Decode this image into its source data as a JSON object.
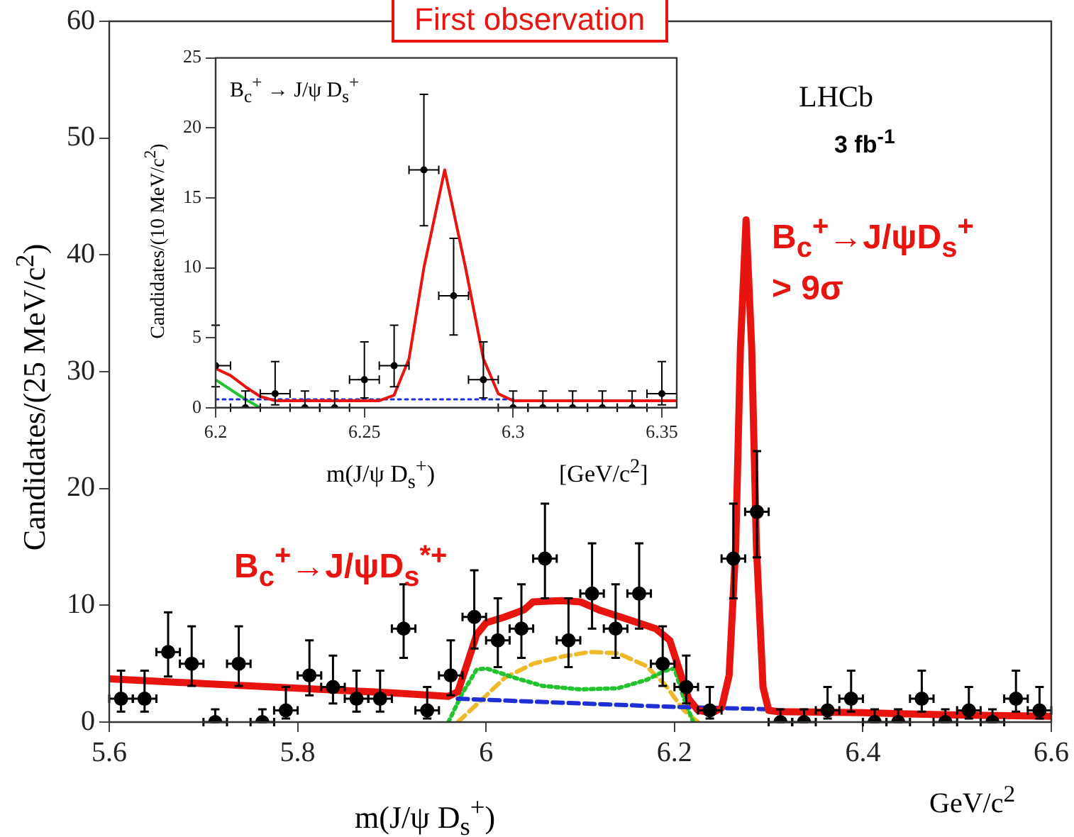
{
  "chart_data": [
    {
      "type": "scatter",
      "xlabel": "m(J/ψ D$_{s}$$^{+}$)",
      "ylabel": "Candidates/(25 MeV/c$^{2}$)",
      "annotations": [
        "First observation",
        "LHCb",
        "3 fb$^{-1}$",
        "B$_{c}$$^{+}$→J/ψD$_{s}$$^{*+}$",
        "B$_{c}$$^{+}$→J/ψD$_{s}$$^{+}$",
        "> 9σ",
        "GeV/c$^{2}$"
      ],
      "xlim": [
        5.6,
        6.6
      ],
      "xticks": [
        5.6,
        5.8,
        6,
        6.2,
        6.4,
        6.6
      ],
      "ylim": [
        0,
        60
      ],
      "yticks": [
        0,
        10,
        20,
        30,
        40,
        50,
        60
      ],
      "grid": false,
      "legend": false,
      "series": [
        {
          "color": "#000000",
          "marker": "circle",
          "x": [
            5.6125,
            5.6375,
            5.6625,
            5.6875,
            5.7125,
            5.7375,
            5.7625,
            5.7875,
            5.8125,
            5.8375,
            5.8625,
            5.8875,
            5.9125,
            5.9375,
            5.9625,
            5.9875,
            6.0125,
            6.0375,
            6.0625,
            6.0875,
            6.1125,
            6.1375,
            6.1625,
            6.1875,
            6.2125,
            6.2375,
            6.2625,
            6.2875,
            6.3125,
            6.3375,
            6.3625,
            6.3875,
            6.4125,
            6.4375,
            6.4625,
            6.4875,
            6.5125,
            6.5375,
            6.5625,
            6.5875
          ],
          "values": [
            2,
            2,
            6,
            5,
            0,
            5,
            0,
            1,
            4,
            3,
            2,
            2,
            8,
            1,
            4,
            9,
            7,
            8,
            14,
            7,
            11,
            8,
            11,
            5,
            3,
            1,
            14,
            18,
            0,
            0,
            1,
            2,
            0,
            0,
            2,
            0,
            1,
            0,
            2,
            1
          ],
          "errors": [
            [
              0.9,
              4.4
            ],
            [
              0.9,
              4.4
            ],
            [
              3.9,
              9.4
            ],
            [
              3.1,
              8.2
            ],
            [
              0,
              1.1
            ],
            [
              3.1,
              8.2
            ],
            [
              0,
              1.1
            ],
            [
              0.3,
              3.0
            ],
            [
              2.3,
              7.0
            ],
            [
              1.6,
              5.7
            ],
            [
              0.9,
              4.4
            ],
            [
              0.9,
              4.4
            ],
            [
              5.5,
              11.8
            ],
            [
              0.3,
              3.0
            ],
            [
              2.3,
              7.0
            ],
            [
              6.3,
              13.0
            ],
            [
              4.7,
              10.6
            ],
            [
              5.5,
              11.8
            ],
            [
              10.6,
              18.7
            ],
            [
              4.7,
              10.6
            ],
            [
              8.0,
              15.3
            ],
            [
              5.5,
              11.8
            ],
            [
              8.0,
              15.3
            ],
            [
              3.1,
              8.2
            ],
            [
              1.6,
              5.7
            ],
            [
              0.3,
              3.0
            ],
            [
              10.6,
              18.7
            ],
            [
              14.1,
              23.2
            ],
            [
              0,
              1.1
            ],
            [
              0,
              1.1
            ],
            [
              0.3,
              3.0
            ],
            [
              0.9,
              4.4
            ],
            [
              0,
              1.1
            ],
            [
              0,
              1.1
            ],
            [
              0.9,
              4.4
            ],
            [
              0,
              1.1
            ],
            [
              0.3,
              3.0
            ],
            [
              0,
              1.1
            ],
            [
              0.9,
              4.4
            ],
            [
              0.3,
              3.0
            ]
          ],
          "xerrors": [
            0.0125,
            0.0125,
            0.0125,
            0.0125,
            0.0125,
            0.0125,
            0.0125,
            0.0125,
            0.0125,
            0.0125,
            0.0125,
            0.0125,
            0.0125,
            0.0125,
            0.0125,
            0.0125,
            0.0125,
            0.0125,
            0.0125,
            0.0125,
            0.0125,
            0.0125,
            0.0125,
            0.0125,
            0.0125,
            0.0125,
            0.0125,
            0.0125,
            0.0125,
            0.0125,
            0.0125,
            0.0125,
            0.0125,
            0.0125,
            0.0125,
            0.0125,
            0.0125,
            0.0125,
            0.0125,
            0.0125
          ]
        },
        {
          "type": "line",
          "color": "#e8140f",
          "marker": "none",
          "line_style": "solid",
          "x": [
            5.6,
            5.7,
            5.8,
            5.9,
            5.96,
            5.97,
            5.98,
            5.99,
            6.0,
            6.02,
            6.04,
            6.05,
            6.08,
            6.1,
            6.12,
            6.15,
            6.18,
            6.195,
            6.205,
            6.215,
            6.225,
            6.24,
            6.25,
            6.258,
            6.265,
            6.27,
            6.276,
            6.282,
            6.287,
            6.294,
            6.3,
            6.31,
            6.4,
            6.5,
            6.6
          ],
          "values": [
            3.7,
            3.3,
            2.9,
            2.5,
            2.2,
            2.6,
            5.0,
            7.5,
            8.5,
            9.0,
            9.6,
            10.3,
            10.4,
            10.3,
            9.6,
            8.8,
            8.0,
            7.0,
            4.5,
            2.0,
            1.0,
            0.8,
            1.2,
            4,
            15,
            32,
            43,
            32,
            15,
            3,
            1.0,
            0.9,
            0.8,
            0.6,
            0.5
          ]
        },
        {
          "type": "line",
          "color": "#1f2fd6",
          "marker": "none",
          "line_style": "dashed",
          "x": [
            5.97,
            6.1,
            6.2,
            6.3
          ],
          "values": [
            2.0,
            1.6,
            1.3,
            1.1
          ]
        },
        {
          "type": "line",
          "color": "#22c32e",
          "marker": "none",
          "line_style": "dotted",
          "x": [
            5.96,
            5.975,
            5.99,
            6.0,
            6.03,
            6.06,
            6.1,
            6.14,
            6.17,
            6.19,
            6.2,
            6.21,
            6.22
          ],
          "values": [
            0,
            2.5,
            4.5,
            4.6,
            3.8,
            3.1,
            2.8,
            2.9,
            3.6,
            4.4,
            4.6,
            2.0,
            0
          ]
        },
        {
          "type": "line",
          "color": "#f0b92a",
          "marker": "none",
          "line_style": "dashed",
          "x": [
            5.97,
            5.99,
            6.02,
            6.05,
            6.08,
            6.11,
            6.14,
            6.17,
            6.19,
            6.21,
            6.225
          ],
          "values": [
            0,
            1.5,
            3.8,
            5.0,
            5.6,
            6.0,
            5.9,
            4.8,
            3.2,
            1.0,
            0
          ]
        }
      ]
    },
    {
      "type": "scatter",
      "xlabel": "m(J/ψ D$_{s}$$^{+}$)",
      "ylabel": "Candidates/(10 MeV/c$^{2}$)",
      "annotations": [
        "B$_{c}$$^{+}$ → J/ψ D$_{s}$$^{+}$",
        "[GeV/c$^{2}$]"
      ],
      "xlim": [
        6.2,
        6.355
      ],
      "xticks": [
        6.2,
        6.25,
        6.3,
        6.35
      ],
      "ylim": [
        0,
        25
      ],
      "yticks": [
        0,
        5,
        10,
        15,
        20,
        25
      ],
      "grid": false,
      "legend": false,
      "series": [
        {
          "color": "#000000",
          "marker": "circle",
          "x": [
            6.2,
            6.21,
            6.22,
            6.23,
            6.24,
            6.25,
            6.26,
            6.27,
            6.28,
            6.29,
            6.3,
            6.31,
            6.32,
            6.33,
            6.34,
            6.35
          ],
          "values": [
            3,
            0,
            1,
            0,
            0,
            2,
            3,
            17,
            8,
            2,
            0,
            0,
            0,
            0,
            0,
            1
          ],
          "errors": [
            [
              1.5,
              5.9
            ],
            [
              0,
              1.2
            ],
            [
              0.2,
              3.3
            ],
            [
              0,
              1.2
            ],
            [
              0,
              1.2
            ],
            [
              0.7,
              4.7
            ],
            [
              1.5,
              5.9
            ],
            [
              13.0,
              22.4
            ],
            [
              5.2,
              12.1
            ],
            [
              0.7,
              4.7
            ],
            [
              0,
              1.2
            ],
            [
              0,
              1.2
            ],
            [
              0,
              1.2
            ],
            [
              0,
              1.2
            ],
            [
              0,
              1.2
            ],
            [
              0.2,
              3.3
            ]
          ],
          "xerrors": [
            [
              6.2,
              6.205
            ],
            0.005,
            0.005,
            0.005,
            0.005,
            0.005,
            0.005,
            0.005,
            0.005,
            0.005,
            0.005,
            0.005,
            0.005,
            0.005,
            0.005,
            0.005
          ]
        },
        {
          "type": "line",
          "color": "#e8140f",
          "marker": "none",
          "line_style": "solid",
          "x": [
            6.2,
            6.205,
            6.21,
            6.215,
            6.22,
            6.255,
            6.26,
            6.265,
            6.27,
            6.277,
            6.284,
            6.29,
            6.295,
            6.3,
            6.355
          ],
          "values": [
            2.8,
            2.3,
            1.5,
            0.8,
            0.5,
            0.5,
            0.9,
            3.5,
            10,
            17,
            10,
            3.5,
            1.0,
            0.5,
            0.5
          ]
        },
        {
          "type": "line",
          "color": "#1f2fd6",
          "marker": "none",
          "line_style": "dotted",
          "x": [
            6.2,
            6.3
          ],
          "values": [
            0.6,
            0.6
          ]
        },
        {
          "type": "line",
          "color": "#22c32e",
          "marker": "none",
          "line_style": "solid",
          "x": [
            6.2,
            6.21,
            6.215
          ],
          "values": [
            2.0,
            0.6,
            0
          ]
        }
      ]
    }
  ]
}
